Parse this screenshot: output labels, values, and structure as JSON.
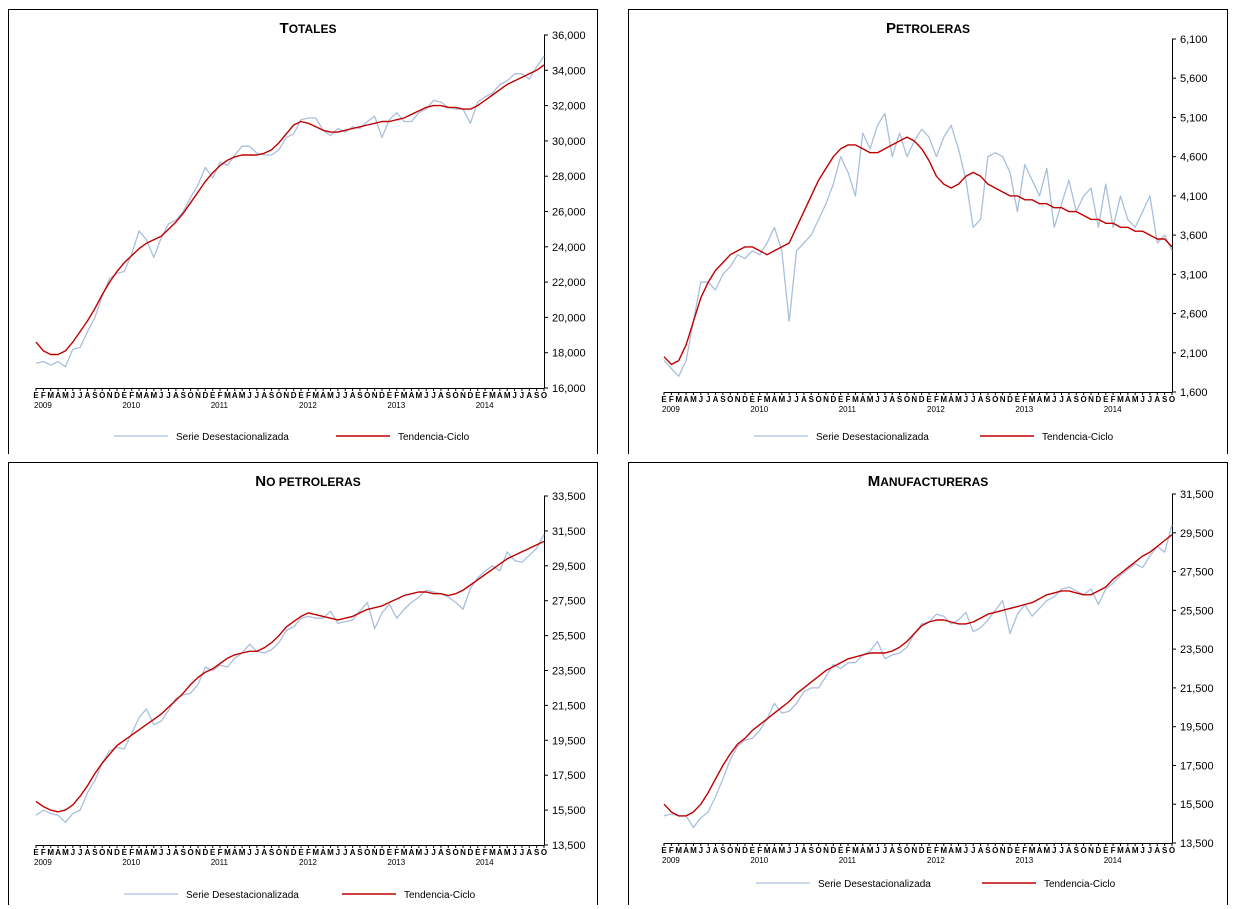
{
  "legend": {
    "serie": "Serie Desestacionalizada",
    "tendencia": "Tendencia-Ciclo",
    "serie_color": "#a9bfdc",
    "tendencia_color": "#c00000"
  },
  "month_letters": [
    "E",
    "F",
    "M",
    "A",
    "M",
    "J",
    "J",
    "A",
    "S",
    "O",
    "N",
    "D"
  ],
  "year_labels": [
    "2009",
    "2010",
    "2011",
    "2012",
    "2013",
    "2014"
  ],
  "chart_data": [
    {
      "type": "line",
      "title_first": "T",
      "title_rest": "OTALES",
      "x_start": "2009-01",
      "n_points": 70,
      "ylim": [
        16000,
        36000
      ],
      "ytick_labels": [
        "16,000",
        "18,000",
        "20,000",
        "22,000",
        "24,000",
        "26,000",
        "28,000",
        "30,000",
        "32,000",
        "34,000",
        "36,000"
      ],
      "series": [
        {
          "name": "Serie Desestacionalizada",
          "values": [
            17400,
            17500,
            17300,
            17500,
            17200,
            18200,
            18300,
            19200,
            20000,
            21200,
            22200,
            22500,
            22600,
            23600,
            24900,
            24400,
            23400,
            24500,
            25300,
            25500,
            26000,
            26800,
            27500,
            28500,
            27900,
            28800,
            28600,
            29200,
            29700,
            29700,
            29300,
            29200,
            29200,
            29500,
            30200,
            30400,
            31200,
            31300,
            31300,
            30600,
            30300,
            30700,
            30500,
            30800,
            30700,
            31100,
            31400,
            30200,
            31200,
            31600,
            31100,
            31100,
            31600,
            31800,
            32300,
            32200,
            31900,
            31800,
            31800,
            31000,
            32200,
            32500,
            32700,
            33200,
            33400,
            33800,
            33800,
            33500,
            34200,
            34800
          ]
        },
        {
          "name": "Tendencia-Ciclo",
          "values": [
            18600,
            18100,
            17900,
            17900,
            18100,
            18600,
            19200,
            19800,
            20500,
            21300,
            22000,
            22600,
            23100,
            23500,
            23900,
            24200,
            24400,
            24600,
            25000,
            25400,
            25900,
            26500,
            27100,
            27700,
            28200,
            28600,
            28900,
            29100,
            29200,
            29200,
            29200,
            29300,
            29500,
            29900,
            30400,
            30900,
            31100,
            31000,
            30800,
            30600,
            30500,
            30500,
            30600,
            30700,
            30800,
            30900,
            31000,
            31100,
            31100,
            31200,
            31300,
            31500,
            31700,
            31900,
            32000,
            32000,
            31900,
            31900,
            31800,
            31800,
            32000,
            32300,
            32600,
            32900,
            33200,
            33400,
            33600,
            33800,
            34000,
            34300
          ]
        }
      ]
    },
    {
      "type": "line",
      "title_first": "P",
      "title_rest": "ETROLERAS",
      "x_start": "2009-01",
      "n_points": 70,
      "ylim": [
        1600,
        6100
      ],
      "ytick_labels": [
        "1,600",
        "2,100",
        "2,600",
        "3,100",
        "3,600",
        "4,100",
        "4,600",
        "5,100",
        "5,600",
        "6,100"
      ],
      "series": [
        {
          "name": "Serie Desestacionalizada",
          "values": [
            2000,
            1900,
            1800,
            2000,
            2500,
            3000,
            3000,
            2900,
            3100,
            3200,
            3350,
            3300,
            3400,
            3350,
            3500,
            3700,
            3400,
            2500,
            3400,
            3500,
            3600,
            3800,
            4000,
            4250,
            4600,
            4400,
            4100,
            4900,
            4700,
            5000,
            5150,
            4600,
            4900,
            4600,
            4800,
            4950,
            4850,
            4600,
            4850,
            5000,
            4700,
            4300,
            3700,
            3800,
            4600,
            4650,
            4600,
            4400,
            3900,
            4500,
            4300,
            4100,
            4450,
            3700,
            4000,
            4300,
            3900,
            4100,
            4200,
            3700,
            4250,
            3700,
            4100,
            3800,
            3700,
            3900,
            4100,
            3500,
            3600,
            3400
          ]
        },
        {
          "name": "Tendencia-Ciclo",
          "values": [
            2050,
            1950,
            2000,
            2200,
            2500,
            2800,
            3000,
            3150,
            3250,
            3350,
            3400,
            3450,
            3450,
            3400,
            3350,
            3400,
            3450,
            3500,
            3700,
            3900,
            4100,
            4300,
            4450,
            4600,
            4700,
            4750,
            4750,
            4700,
            4650,
            4650,
            4700,
            4750,
            4800,
            4850,
            4800,
            4700,
            4550,
            4350,
            4250,
            4200,
            4250,
            4350,
            4400,
            4350,
            4250,
            4200,
            4150,
            4100,
            4100,
            4050,
            4050,
            4000,
            4000,
            3950,
            3950,
            3900,
            3900,
            3850,
            3800,
            3800,
            3750,
            3750,
            3700,
            3700,
            3650,
            3650,
            3600,
            3550,
            3550,
            3450
          ]
        }
      ]
    },
    {
      "type": "line",
      "title_first": "N",
      "title_rest": "O PETROLERAS",
      "x_start": "2009-01",
      "n_points": 70,
      "ylim": [
        13500,
        33500
      ],
      "ytick_labels": [
        "13,500",
        "15,500",
        "17,500",
        "19,500",
        "21,500",
        "23,500",
        "25,500",
        "27,500",
        "29,500",
        "31,500",
        "33,500"
      ],
      "series": [
        {
          "name": "Serie Desestacionalizada",
          "values": [
            15200,
            15500,
            15300,
            15200,
            14800,
            15300,
            15500,
            16500,
            17200,
            18200,
            18900,
            19100,
            19000,
            19900,
            20800,
            21300,
            20400,
            20600,
            21200,
            21900,
            22100,
            22200,
            22700,
            23700,
            23500,
            23800,
            23700,
            24200,
            24500,
            25000,
            24600,
            24500,
            24700,
            25100,
            25800,
            26000,
            26500,
            26600,
            26500,
            26500,
            26900,
            26200,
            26300,
            26400,
            26900,
            27400,
            25900,
            26800,
            27300,
            26500,
            27000,
            27400,
            27700,
            28100,
            28000,
            27900,
            27700,
            27400,
            27000,
            28200,
            28800,
            29200,
            29500,
            29200,
            30300,
            29800,
            29700,
            30100,
            30500,
            31300
          ]
        },
        {
          "name": "Tendencia-Ciclo",
          "values": [
            16000,
            15700,
            15500,
            15400,
            15500,
            15800,
            16300,
            16900,
            17600,
            18200,
            18700,
            19200,
            19500,
            19800,
            20100,
            20400,
            20700,
            21000,
            21400,
            21800,
            22200,
            22700,
            23100,
            23400,
            23600,
            23900,
            24200,
            24400,
            24500,
            24600,
            24600,
            24800,
            25100,
            25500,
            26000,
            26300,
            26600,
            26800,
            26700,
            26600,
            26500,
            26400,
            26500,
            26600,
            26800,
            27000,
            27100,
            27200,
            27400,
            27600,
            27800,
            27900,
            28000,
            28000,
            27900,
            27900,
            27800,
            27900,
            28100,
            28400,
            28700,
            29000,
            29300,
            29600,
            29900,
            30100,
            30300,
            30500,
            30700,
            30900
          ]
        }
      ]
    },
    {
      "type": "line",
      "title_first": "M",
      "title_rest": "ANUFACTURERAS",
      "x_start": "2009-01",
      "n_points": 70,
      "ylim": [
        13500,
        31500
      ],
      "ytick_labels": [
        "13,500",
        "15,500",
        "17,500",
        "19,500",
        "21,500",
        "23,500",
        "25,500",
        "27,500",
        "29,500",
        "31,500"
      ],
      "series": [
        {
          "name": "Serie Desestacionalizada",
          "values": [
            14900,
            15000,
            14900,
            14900,
            14300,
            14800,
            15100,
            15900,
            16800,
            17800,
            18500,
            18800,
            18900,
            19300,
            19900,
            20700,
            20200,
            20300,
            20700,
            21300,
            21500,
            21500,
            22100,
            22700,
            22500,
            22800,
            22800,
            23200,
            23400,
            23900,
            23000,
            23200,
            23300,
            23600,
            24300,
            24800,
            24900,
            25300,
            25200,
            24800,
            25000,
            25400,
            24400,
            24600,
            25000,
            25500,
            26000,
            24300,
            25300,
            25800,
            25200,
            25600,
            26000,
            26200,
            26600,
            26700,
            26500,
            26300,
            26600,
            25800,
            26600,
            26900,
            27300,
            27600,
            27900,
            27700,
            28300,
            28800,
            28500,
            29900
          ]
        },
        {
          "name": "Tendencia-Ciclo",
          "values": [
            15500,
            15100,
            14900,
            14900,
            15100,
            15500,
            16100,
            16800,
            17500,
            18100,
            18600,
            18900,
            19300,
            19600,
            19900,
            20200,
            20500,
            20800,
            21200,
            21500,
            21800,
            22100,
            22400,
            22600,
            22800,
            23000,
            23100,
            23200,
            23300,
            23300,
            23300,
            23400,
            23600,
            23900,
            24300,
            24700,
            24900,
            25000,
            25000,
            24900,
            24800,
            24800,
            24900,
            25100,
            25300,
            25400,
            25500,
            25600,
            25700,
            25800,
            25900,
            26100,
            26300,
            26400,
            26500,
            26500,
            26400,
            26300,
            26300,
            26500,
            26700,
            27100,
            27400,
            27700,
            28000,
            28300,
            28500,
            28800,
            29100,
            29400
          ]
        }
      ]
    }
  ]
}
